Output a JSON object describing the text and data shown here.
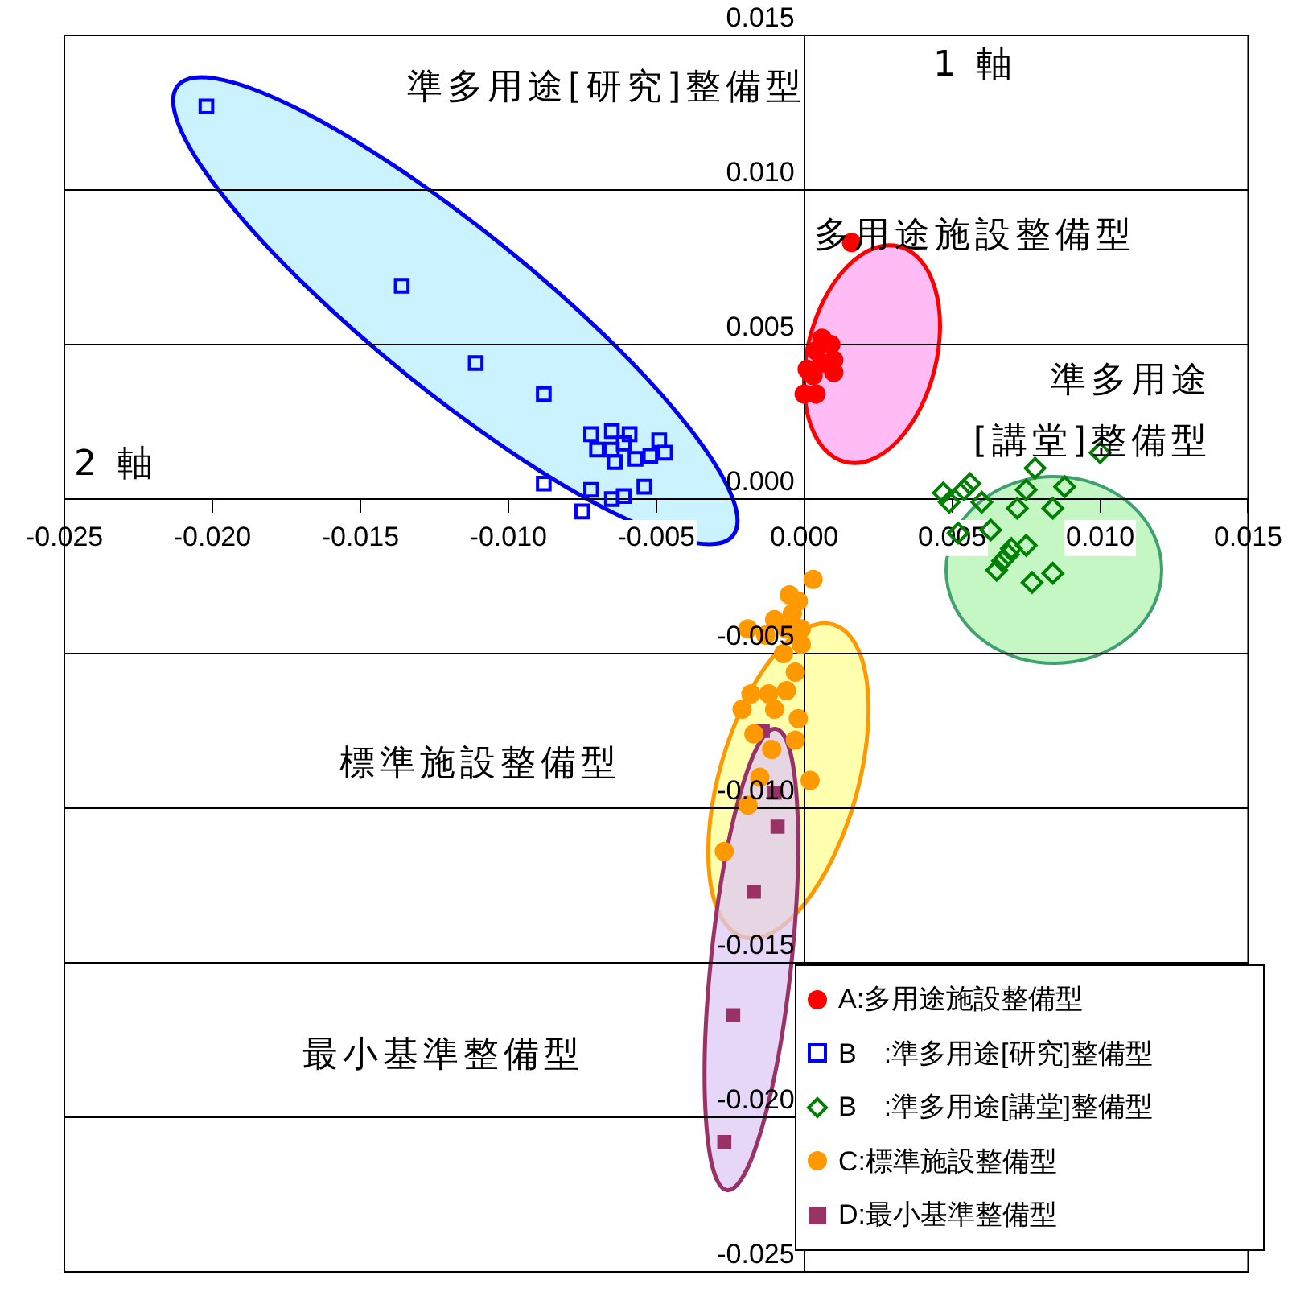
{
  "chart_data": {
    "type": "scatter",
    "xlabel": "2 軸",
    "ylabel": "1 軸",
    "xlim": [
      -0.025,
      0.015
    ],
    "xticks": [
      {
        "value": -0.025,
        "label": "-0.025"
      },
      {
        "value": -0.02,
        "label": "-0.020"
      },
      {
        "value": -0.015,
        "label": "-0.015"
      },
      {
        "value": -0.01,
        "label": "-0.010"
      },
      {
        "value": -0.005,
        "label": "-0.005"
      },
      {
        "value": 0,
        "label": "0.000"
      },
      {
        "value": 0.005,
        "label": "0.005"
      },
      {
        "value": 0.01,
        "label": "0.010"
      },
      {
        "value": 0.015,
        "label": "0.015"
      }
    ],
    "ylim": [
      -0.025,
      0.015
    ],
    "yticks": [
      {
        "value": -0.025,
        "label": "-0.025"
      },
      {
        "value": -0.02,
        "label": "-0.020"
      },
      {
        "value": -0.015,
        "label": "-0.015"
      },
      {
        "value": -0.01,
        "label": "-0.010"
      },
      {
        "value": -0.005,
        "label": "-0.005"
      },
      {
        "value": 0,
        "label": "0.000"
      },
      {
        "value": 0.005,
        "label": "0.005"
      },
      {
        "value": 0.01,
        "label": "0.010"
      },
      {
        "value": 0.015,
        "label": "0.015"
      }
    ],
    "grid": "y",
    "legend": "bottom right",
    "annotations": [
      "準多用途[研究]整備型",
      "多用途施設整備型",
      "準多用途\n[講堂]整備型",
      "標準施設整備型",
      "最小基準整備型"
    ],
    "series": [
      {
        "name": "A:多用途施設整備型",
        "color": "#ff0000",
        "marker": "circle",
        "x": [
          0.0016,
          0.0006,
          0.0009,
          0.0004,
          0.001,
          0.0006,
          0.0001,
          0.001,
          0.0003,
          0.0,
          0.0004
        ],
        "values": [
          0.0083,
          0.0052,
          0.005,
          0.0048,
          0.0045,
          0.0044,
          0.0042,
          0.0041,
          0.004,
          0.0034,
          0.0034
        ]
      },
      {
        "name": "B　:準多用途[研究]整備型",
        "color": "#0000ff",
        "marker": "square",
        "x": [
          -0.0202,
          -0.0136,
          -0.0111,
          -0.0088,
          -0.0088,
          -0.0072,
          -0.0065,
          -0.0059,
          -0.007,
          -0.0065,
          -0.0061,
          -0.0064,
          -0.0057,
          -0.0049,
          -0.0047,
          -0.0052,
          -0.0072,
          -0.0075,
          -0.0065,
          -0.0061,
          -0.0054
        ],
        "values": [
          0.0127,
          0.0069,
          0.0044,
          0.0034,
          0.0005,
          0.0021,
          0.0022,
          0.0021,
          0.0016,
          0.0016,
          0.0018,
          0.0012,
          0.0013,
          0.0019,
          0.0015,
          0.0014,
          0.0003,
          -0.0004,
          0.0,
          0.0001,
          0.0004
        ]
      },
      {
        "name": "B　:準多用途[講堂]整備型",
        "color": "#008000",
        "marker": "diamond",
        "x": [
          0.01,
          0.0078,
          0.0047,
          0.0049,
          0.0056,
          0.0054,
          0.006,
          0.0075,
          0.0088,
          0.0072,
          0.0084,
          0.0052,
          0.0063,
          0.0067,
          0.0069,
          0.0075,
          0.0065,
          0.0077,
          0.0084,
          0.007
        ],
        "values": [
          0.0015,
          0.001,
          0.0002,
          -0.0001,
          0.0005,
          0.0003,
          -0.0001,
          0.0003,
          0.0004,
          -0.0003,
          -0.0003,
          -0.0011,
          -0.001,
          -0.002,
          -0.0018,
          -0.0015,
          -0.0023,
          -0.0027,
          -0.0024,
          -0.0016
        ]
      },
      {
        "name": "C:標準施設整備型",
        "color": "#ff9900",
        "marker": "circle",
        "x": [
          0.0003,
          -0.0005,
          -0.0002,
          -0.0004,
          -0.001,
          -0.0019,
          -0.0013,
          -0.0006,
          -0.0001,
          -0.0001,
          -0.0007,
          -0.0003,
          -0.0018,
          -0.0012,
          -0.0006,
          -0.001,
          -0.0021,
          -0.0002,
          -0.0017,
          -0.0011,
          -0.0003,
          -0.0015,
          0.0002,
          -0.0027,
          -0.0019
        ],
        "values": [
          -0.0026,
          -0.0031,
          -0.0033,
          -0.0037,
          -0.0039,
          -0.0042,
          -0.0044,
          -0.0042,
          -0.0042,
          -0.0047,
          -0.005,
          -0.0056,
          -0.0063,
          -0.0063,
          -0.0062,
          -0.0068,
          -0.0068,
          -0.0071,
          -0.0076,
          -0.0081,
          -0.0078,
          -0.009,
          -0.0091,
          -0.0114,
          -0.0099
        ]
      },
      {
        "name": "D:最小基準整備型",
        "color": "#993366",
        "marker": "square",
        "x": [
          -0.0014,
          -0.001,
          -0.0009,
          -0.0017,
          -0.0024,
          -0.0027
        ],
        "values": [
          -0.0075,
          -0.0095,
          -0.0106,
          -0.0127,
          -0.0167,
          -0.0208
        ]
      }
    ]
  }
}
